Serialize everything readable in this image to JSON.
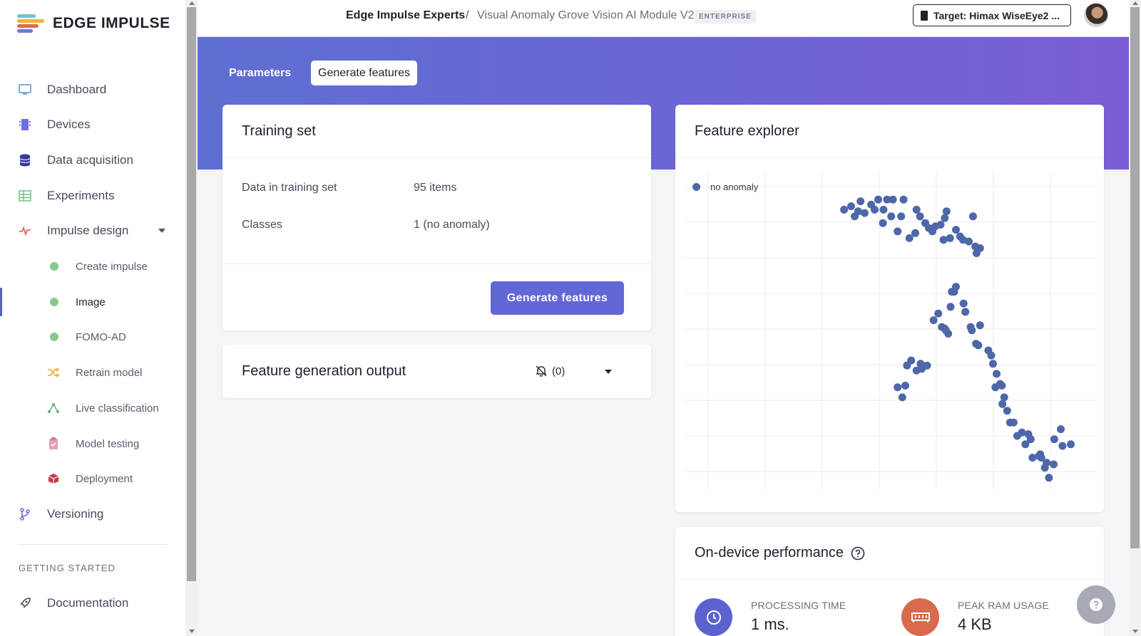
{
  "app": {
    "logo_text": "EDGE IMPULSE"
  },
  "sidebar": {
    "items": [
      {
        "label": "Dashboard"
      },
      {
        "label": "Devices"
      },
      {
        "label": "Data acquisition"
      },
      {
        "label": "Experiments"
      },
      {
        "label": "Impulse design"
      },
      {
        "label": "Create impulse"
      },
      {
        "label": "Image"
      },
      {
        "label": "FOMO-AD"
      },
      {
        "label": "Retrain model"
      },
      {
        "label": "Live classification"
      },
      {
        "label": "Model testing"
      },
      {
        "label": "Deployment"
      },
      {
        "label": "Versioning"
      }
    ],
    "section_label": "GETTING STARTED",
    "documentation": "Documentation"
  },
  "topbar": {
    "org": "Edge Impulse Experts",
    "separator": "/",
    "project": "Visual Anomaly Grove Vision AI Module V2",
    "badge": "ENTERPRISE",
    "target": "Target: Himax WiseEye2 ..."
  },
  "tabs": [
    {
      "label": "Parameters"
    },
    {
      "label": "Generate features"
    }
  ],
  "training_set": {
    "title": "Training set",
    "rows": [
      {
        "label": "Data in training set",
        "value": "95 items"
      },
      {
        "label": "Classes",
        "value": "1 (no anomaly)"
      }
    ],
    "button": "Generate features"
  },
  "feature_output": {
    "title": "Feature generation output",
    "notification_count": "(0)"
  },
  "feature_explorer": {
    "title": "Feature explorer",
    "legend": "no anomaly",
    "point_color": "#4d67a8"
  },
  "performance": {
    "title": "On-device performance",
    "processing_label": "PROCESSING TIME",
    "processing_value": "1 ms.",
    "ram_label": "PEAK RAM USAGE",
    "ram_value": "4 KB"
  },
  "colors": {
    "accent": "#6367d6",
    "hero_start": "#5e6fd0",
    "hero_end": "#7b5ed6"
  },
  "chart_data": {
    "type": "scatter",
    "series": [
      {
        "name": "no anomaly",
        "points": [
          [
            272,
            78
          ],
          [
            284,
            76
          ],
          [
            290,
            82
          ],
          [
            296,
            79
          ],
          [
            300,
            73
          ],
          [
            307,
            80
          ],
          [
            318,
            75
          ],
          [
            324,
            78
          ],
          [
            330,
            72
          ],
          [
            338,
            86
          ],
          [
            339,
            78
          ],
          [
            345,
            72
          ],
          [
            352,
            82
          ],
          [
            355,
            72
          ],
          [
            363,
            91
          ],
          [
            369,
            82
          ],
          [
            373,
            72
          ],
          [
            383,
            95
          ],
          [
            393,
            92
          ],
          [
            395,
            78
          ],
          [
            401,
            82
          ],
          [
            410,
            86
          ],
          [
            416,
            89
          ],
          [
            422,
            91
          ],
          [
            427,
            88
          ],
          [
            436,
            87
          ],
          [
            441,
            96
          ],
          [
            443,
            83
          ],
          [
            446,
            79
          ],
          [
            452,
            95
          ],
          [
            462,
            90
          ],
          [
            469,
            94
          ],
          [
            474,
            96
          ],
          [
            484,
            97
          ],
          [
            491,
            82
          ],
          [
            495,
            100
          ],
          [
            497,
            104
          ],
          [
            503,
            101
          ],
          [
            363,
            184
          ],
          [
            371,
            190
          ],
          [
            376,
            183
          ],
          [
            379,
            171
          ],
          [
            386,
            168
          ],
          [
            395,
            174
          ],
          [
            402,
            170
          ],
          [
            404,
            173
          ],
          [
            413,
            171
          ],
          [
            424,
            144
          ],
          [
            432,
            140
          ],
          [
            438,
            148
          ],
          [
            443,
            149
          ],
          [
            445,
            150
          ],
          [
            449,
            152
          ],
          [
            453,
            136
          ],
          [
            455,
            127
          ],
          [
            459,
            127
          ],
          [
            462,
            124
          ],
          [
            475,
            134
          ],
          [
            478,
            139
          ],
          [
            487,
            148
          ],
          [
            489,
            150
          ],
          [
            496,
            158
          ],
          [
            500,
            159
          ],
          [
            503,
            147
          ],
          [
            517,
            162
          ],
          [
            522,
            165
          ],
          [
            525,
            170
          ],
          [
            529,
            184
          ],
          [
            531,
            176
          ],
          [
            537,
            182
          ],
          [
            540,
            183
          ],
          [
            541,
            194
          ],
          [
            544,
            190
          ],
          [
            549,
            198
          ],
          [
            554,
            205
          ],
          [
            560,
            205
          ],
          [
            566,
            213
          ],
          [
            574,
            211
          ],
          [
            580,
            218
          ],
          [
            585,
            212
          ],
          [
            589,
            215
          ],
          [
            592,
            226
          ],
          [
            603,
            225
          ],
          [
            605,
            224
          ],
          [
            607,
            226
          ],
          [
            613,
            232
          ],
          [
            616,
            229
          ],
          [
            620,
            238
          ],
          [
            628,
            230
          ],
          [
            629,
            215
          ],
          [
            640,
            209
          ],
          [
            643,
            219
          ],
          [
            657,
            218
          ]
        ]
      }
    ],
    "legend_position": "top-left",
    "grid": true
  }
}
